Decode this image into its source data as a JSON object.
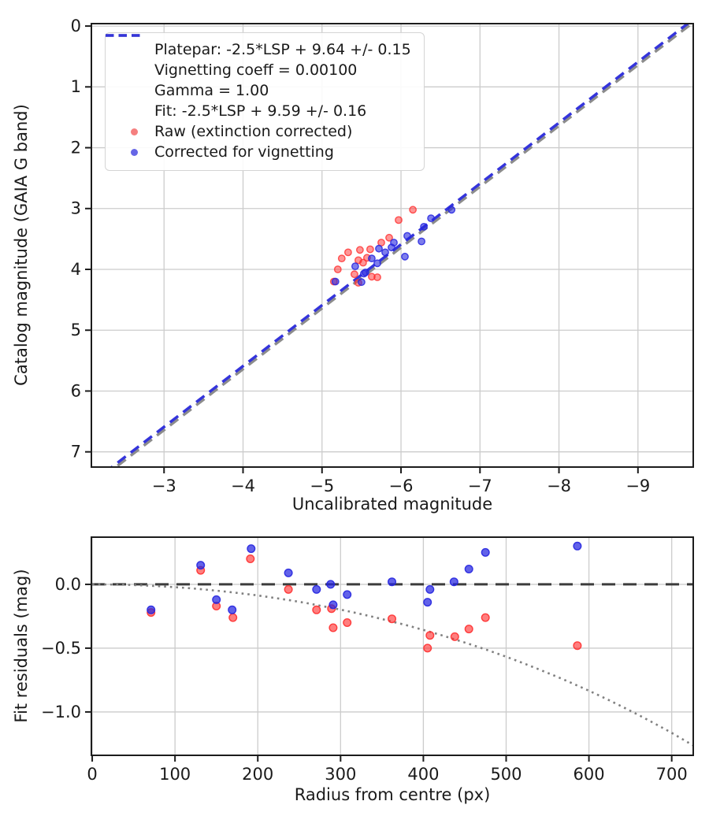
{
  "figure": {
    "background": "#ffffff",
    "text_color": "#1a1a1a",
    "grid_color": "#cccccc",
    "spine_color": "#1c1c1c"
  },
  "chart_data": [
    {
      "id": "magnitude_fit",
      "type": "scatter",
      "xlabel": "Uncalibrated magnitude",
      "ylabel": "Catalog magnitude (GAIA G band)",
      "xlim": [
        -2.08,
        -9.7
      ],
      "ylim": [
        -0.04,
        7.25
      ],
      "x_inverted": true,
      "y_inverted": true,
      "grid": true,
      "legend_position": "upper left",
      "x_ticks": [
        {
          "v": -3,
          "label": "−3"
        },
        {
          "v": -4,
          "label": "−4"
        },
        {
          "v": -5,
          "label": "−5"
        },
        {
          "v": -6,
          "label": "−6"
        },
        {
          "v": -7,
          "label": "−7"
        },
        {
          "v": -8,
          "label": "−8"
        },
        {
          "v": -9,
          "label": "−9"
        }
      ],
      "y_ticks": [
        {
          "v": 0,
          "label": "0"
        },
        {
          "v": 1,
          "label": "1"
        },
        {
          "v": 2,
          "label": "2"
        },
        {
          "v": 3,
          "label": "3"
        },
        {
          "v": 4,
          "label": "4"
        },
        {
          "v": 5,
          "label": "5"
        },
        {
          "v": 6,
          "label": "6"
        },
        {
          "v": 7,
          "label": "7"
        }
      ],
      "lines": [
        {
          "name": "platepar",
          "slope": 1,
          "intercept": 9.64,
          "color": "#8c8c8c",
          "style": "dashed",
          "width": 3.5
        },
        {
          "name": "fit",
          "slope": 1,
          "intercept": 9.59,
          "color": "#3434db",
          "style": "dashed",
          "width": 3.5
        }
      ],
      "series": [
        {
          "name": "raw",
          "color": "#ff2e2e",
          "fill_opacity": 0.5,
          "stroke_opacity": 0.8,
          "radius": 4.2,
          "points": [
            [
              -6.15,
              3.02
            ],
            [
              -5.97,
              3.19
            ],
            [
              -5.85,
              3.48
            ],
            [
              -5.75,
              3.56
            ],
            [
              -5.61,
              3.67
            ],
            [
              -5.48,
              3.68
            ],
            [
              -5.33,
              3.72
            ],
            [
              -5.57,
              3.81
            ],
            [
              -5.25,
              3.82
            ],
            [
              -5.46,
              3.85
            ],
            [
              -5.52,
              3.89
            ],
            [
              -5.2,
              4.0
            ],
            [
              -5.41,
              4.08
            ],
            [
              -5.63,
              4.12
            ],
            [
              -5.7,
              4.13
            ],
            [
              -5.15,
              4.2
            ],
            [
              -5.46,
              4.22
            ]
          ]
        },
        {
          "name": "corrected",
          "color": "#2626e0",
          "fill_opacity": 0.6,
          "stroke_opacity": 0.85,
          "radius": 4.2,
          "points": [
            [
              -6.64,
              3.02
            ],
            [
              -6.38,
              3.16
            ],
            [
              -6.08,
              3.45
            ],
            [
              -6.26,
              3.54
            ],
            [
              -5.88,
              3.64
            ],
            [
              -5.72,
              3.66
            ],
            [
              -6.05,
              3.79
            ],
            [
              -5.63,
              3.82
            ],
            [
              -5.91,
              3.56
            ],
            [
              -5.42,
              3.95
            ],
            [
              -5.53,
              4.07
            ],
            [
              -5.17,
              4.2
            ],
            [
              -5.5,
              4.21
            ],
            [
              -6.29,
              3.3
            ],
            [
              -5.7,
              3.9
            ],
            [
              -5.55,
              4.05
            ],
            [
              -5.8,
              3.72
            ]
          ]
        }
      ]
    },
    {
      "id": "fit_residuals",
      "type": "scatter",
      "xlabel": "Radius from centre (px)",
      "ylabel": "Fit residuals (mag)",
      "xlim": [
        -1,
        726
      ],
      "ylim": [
        0.37,
        -1.34
      ],
      "grid": true,
      "x_ticks": [
        {
          "v": 0,
          "label": "0"
        },
        {
          "v": 100,
          "label": "100"
        },
        {
          "v": 200,
          "label": "200"
        },
        {
          "v": 300,
          "label": "300"
        },
        {
          "v": 400,
          "label": "400"
        },
        {
          "v": 500,
          "label": "500"
        },
        {
          "v": 600,
          "label": "600"
        },
        {
          "v": 700,
          "label": "700"
        }
      ],
      "y_ticks": [
        {
          "v": 0.0,
          "label": "0.0"
        },
        {
          "v": -0.5,
          "label": "−0.5"
        },
        {
          "v": -1.0,
          "label": "−1.0"
        }
      ],
      "zero_line": {
        "y": 0,
        "color": "#3c3c3c",
        "style": "dashed",
        "width": 3
      },
      "vignetting_curve": {
        "color": "#808080",
        "style": "dotted",
        "width": 2.6,
        "points": [
          [
            0,
            0
          ],
          [
            20,
            -0.001
          ],
          [
            40,
            -0.003
          ],
          [
            60,
            -0.008
          ],
          [
            80,
            -0.014
          ],
          [
            100,
            -0.022
          ],
          [
            120,
            -0.031
          ],
          [
            140,
            -0.043
          ],
          [
            160,
            -0.056
          ],
          [
            180,
            -0.071
          ],
          [
            200,
            -0.087
          ],
          [
            220,
            -0.106
          ],
          [
            240,
            -0.126
          ],
          [
            260,
            -0.148
          ],
          [
            280,
            -0.173
          ],
          [
            300,
            -0.198
          ],
          [
            320,
            -0.226
          ],
          [
            340,
            -0.256
          ],
          [
            360,
            -0.288
          ],
          [
            380,
            -0.321
          ],
          [
            400,
            -0.357
          ],
          [
            420,
            -0.395
          ],
          [
            440,
            -0.435
          ],
          [
            460,
            -0.477
          ],
          [
            480,
            -0.521
          ],
          [
            500,
            -0.567
          ],
          [
            520,
            -0.616
          ],
          [
            540,
            -0.667
          ],
          [
            560,
            -0.72
          ],
          [
            580,
            -0.776
          ],
          [
            600,
            -0.834
          ],
          [
            620,
            -0.894
          ],
          [
            640,
            -0.958
          ],
          [
            660,
            -1.024
          ],
          [
            680,
            -1.093
          ],
          [
            700,
            -1.164
          ],
          [
            726,
            -1.263
          ]
        ]
      },
      "series": [
        {
          "name": "raw",
          "color": "#ff2e2e",
          "fill_opacity": 0.62,
          "stroke_opacity": 0.9,
          "radius": 4.8,
          "points": [
            [
              71,
              -0.22
            ],
            [
              131,
              0.11
            ],
            [
              150,
              -0.17
            ],
            [
              170,
              -0.26
            ],
            [
              191,
              0.2
            ],
            [
              237,
              -0.04
            ],
            [
              271,
              -0.2
            ],
            [
              289,
              -0.19
            ],
            [
              291,
              -0.34
            ],
            [
              308,
              -0.3
            ],
            [
              362,
              -0.27
            ],
            [
              405,
              -0.5
            ],
            [
              408,
              -0.4
            ],
            [
              438,
              -0.41
            ],
            [
              455,
              -0.35
            ],
            [
              475,
              -0.26
            ],
            [
              586,
              -0.48
            ]
          ]
        },
        {
          "name": "corrected",
          "color": "#2626e0",
          "fill_opacity": 0.72,
          "stroke_opacity": 0.92,
          "radius": 4.8,
          "points": [
            [
              71,
              -0.2
            ],
            [
              131,
              0.15
            ],
            [
              150,
              -0.12
            ],
            [
              169,
              -0.2
            ],
            [
              192,
              0.28
            ],
            [
              237,
              0.09
            ],
            [
              271,
              -0.04
            ],
            [
              288,
              0.0
            ],
            [
              291,
              -0.16
            ],
            [
              308,
              -0.08
            ],
            [
              362,
              0.02
            ],
            [
              405,
              -0.14
            ],
            [
              408,
              -0.04
            ],
            [
              437,
              0.02
            ],
            [
              455,
              0.12
            ],
            [
              475,
              0.25
            ],
            [
              586,
              0.3
            ]
          ]
        }
      ]
    }
  ],
  "legend": {
    "entries": [
      {
        "marker": "line-dashed",
        "color": "#8c8c8c",
        "lines": [
          "Platepar: -2.5*LSP + 9.64 +/- 0.15",
          "Vignetting coeff = 0.00100",
          "Gamma = 1.00"
        ]
      },
      {
        "marker": "line-dashed",
        "color": "#3434db",
        "lines": [
          "Fit: -2.5*LSP + 9.59 +/- 0.16"
        ]
      },
      {
        "marker": "dot",
        "color": "#f57f7f",
        "lines": [
          "Raw (extinction corrected)"
        ]
      },
      {
        "marker": "dot",
        "color": "#6666e6",
        "lines": [
          "Corrected for vignetting"
        ]
      }
    ]
  }
}
